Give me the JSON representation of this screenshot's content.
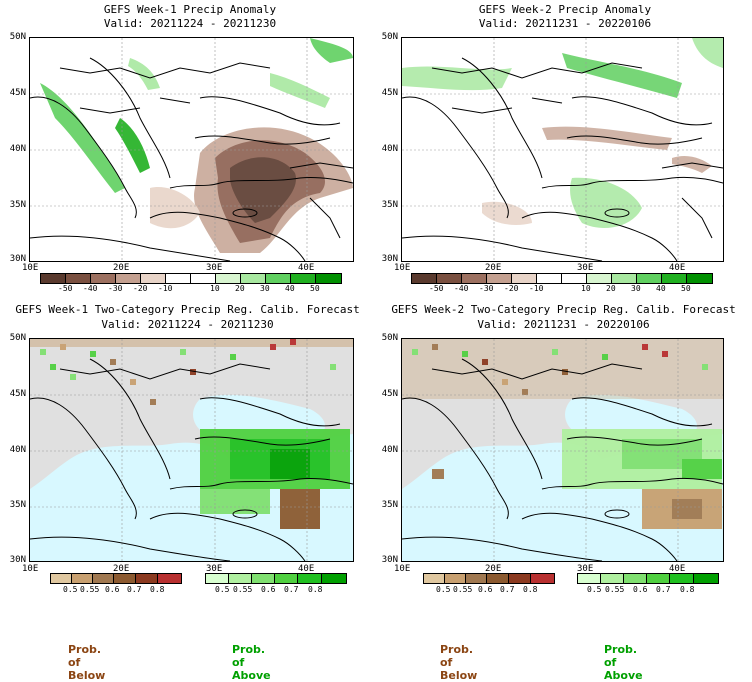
{
  "panels": [
    {
      "title": "GEFS Week-1 Precip Anomaly",
      "valid": "Valid: 20211224 - 20211230"
    },
    {
      "title": "GEFS Week-2 Precip Anomaly",
      "valid": "Valid: 20211231 - 20220106"
    },
    {
      "title": "GEFS Week-1 Two-Category Precip Reg. Calib. Forecast",
      "valid": "Valid: 20211224 - 20211230"
    },
    {
      "title": "GEFS Week-2 Two-Category Precip Reg. Calib. Forecast",
      "valid": "Valid: 20211231 - 20220106"
    }
  ],
  "lat_labels": [
    "50N",
    "45N",
    "40N",
    "35N",
    "30N"
  ],
  "lon_labels": [
    "10E",
    "20E",
    "30E",
    "40E"
  ],
  "anomaly_colorbar": {
    "labels": [
      "-50",
      "-40",
      "-30",
      "-20",
      "-10",
      "10",
      "20",
      "30",
      "40",
      "50"
    ],
    "colors": [
      "#5a3a2e",
      "#7a5040",
      "#9c7060",
      "#c4a090",
      "#e8d4c8",
      "#ffffff",
      "#ffffff",
      "#d8f5d0",
      "#a8e8a0",
      "#60d060",
      "#20b020",
      "#009000"
    ]
  },
  "prob_below_colorbar": {
    "labels": [
      "0.5",
      "0.55",
      "0.6",
      "0.7",
      "0.8"
    ],
    "colors": [
      "#e0c8a0",
      "#c8a070",
      "#a07850",
      "#8c5a30",
      "#8c3a20",
      "#b83030"
    ]
  },
  "prob_above_colorbar": {
    "labels": [
      "0.5",
      "0.55",
      "0.6",
      "0.7",
      "0.8"
    ],
    "colors": [
      "#d8ffd0",
      "#b0f0a0",
      "#80e070",
      "#50d040",
      "#20c020",
      "#00a000"
    ]
  },
  "legend": {
    "below": "Prob. of Below",
    "above": "Prob. of Above",
    "below_color": "#8b4513",
    "above_color": "#00a000"
  }
}
